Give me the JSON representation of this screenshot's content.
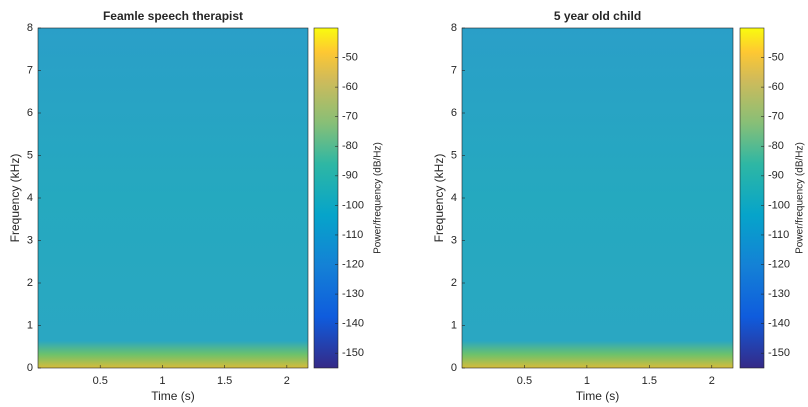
{
  "chart_data": [
    {
      "type": "spectrogram",
      "title": "Feamle speech therapist",
      "xlabel": "Time (s)",
      "ylabel": "Frequency (kHz)",
      "xlim": [
        0,
        2.17
      ],
      "xticks": [
        0.5,
        1,
        1.5,
        2
      ],
      "ylim": [
        0,
        8
      ],
      "yticks": [
        0,
        1,
        2,
        3,
        4,
        5,
        6,
        7,
        8
      ],
      "colormap": "parula",
      "colorbar": {
        "label": "Power/frequency (dB/Hz)",
        "clim": [
          -155,
          -40
        ],
        "ticks": [
          -50,
          -60,
          -70,
          -80,
          -90,
          -100,
          -110,
          -120,
          -130,
          -140,
          -150
        ]
      }
    },
    {
      "type": "spectrogram",
      "title": "5 year old child",
      "xlabel": "Time (s)",
      "ylabel": "Frequency (kHz)",
      "xlim": [
        0,
        2.17
      ],
      "xticks": [
        0.5,
        1,
        1.5,
        2
      ],
      "ylim": [
        0,
        8
      ],
      "yticks": [
        0,
        1,
        2,
        3,
        4,
        5,
        6,
        7,
        8
      ],
      "colormap": "parula",
      "colorbar": {
        "label": "Power/frequency (dB/Hz)",
        "clim": [
          -155,
          -40
        ],
        "ticks": [
          -50,
          -60,
          -70,
          -80,
          -90,
          -100,
          -110,
          -120,
          -130,
          -140,
          -150
        ]
      }
    }
  ]
}
